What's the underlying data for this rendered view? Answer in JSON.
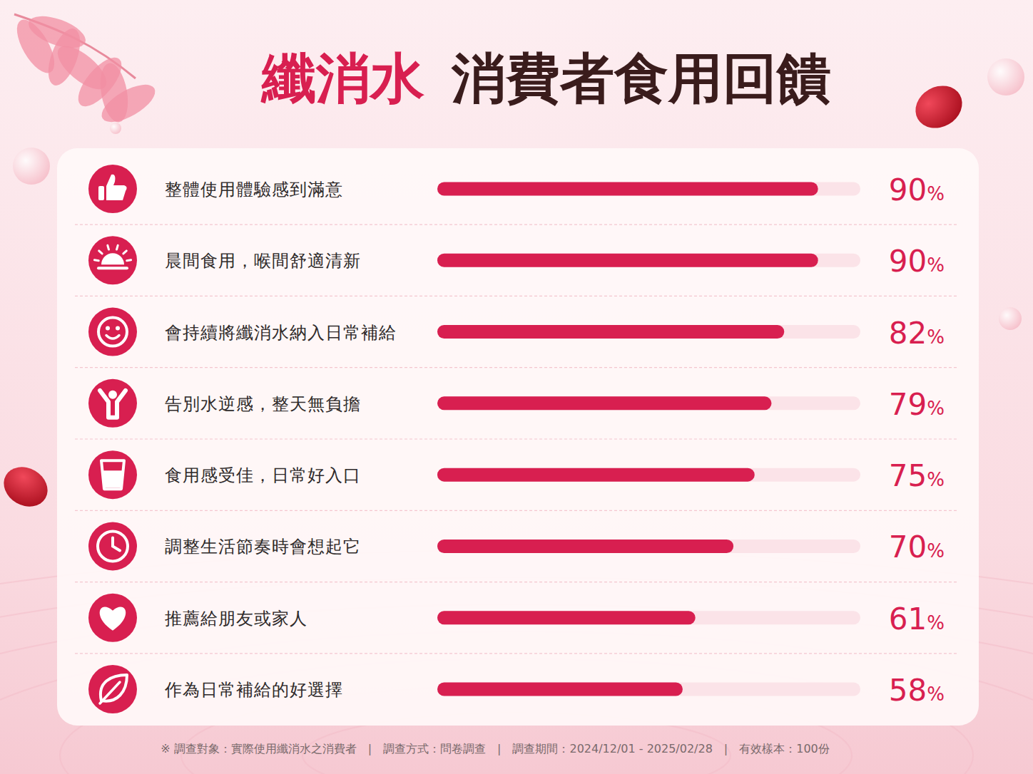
{
  "chart_data": {
    "type": "bar",
    "orientation": "horizontal",
    "title": "纖消水 消費者食用回饋",
    "categories": [
      "整體使用體驗感到滿意",
      "晨間食用，喉間舒適清新",
      "會持續將纖消水納入日常補給",
      "告別水逆感，整天無負擔",
      "食用感受佳，日常好入口",
      "調整生活節奏時會想起它",
      "推薦給朋友或家人",
      "作為日常補給的好選擇"
    ],
    "values": [
      90,
      90,
      82,
      79,
      75,
      70,
      61,
      58
    ],
    "value_labels": [
      "90%",
      "90%",
      "82%",
      "79%",
      "75%",
      "70%",
      "61%",
      "58%"
    ],
    "xlim": [
      0,
      100
    ],
    "data_labels": true,
    "tick_labels": false,
    "grid": false,
    "color": "#d81f50",
    "annotations": [
      "※ 調查對象：實際使用纖消水之消費者　|　調查方式：問卷調查　|　調查期間：2024/12/01 - 2025/02/28　|　有效樣本：100份"
    ]
  }
}
